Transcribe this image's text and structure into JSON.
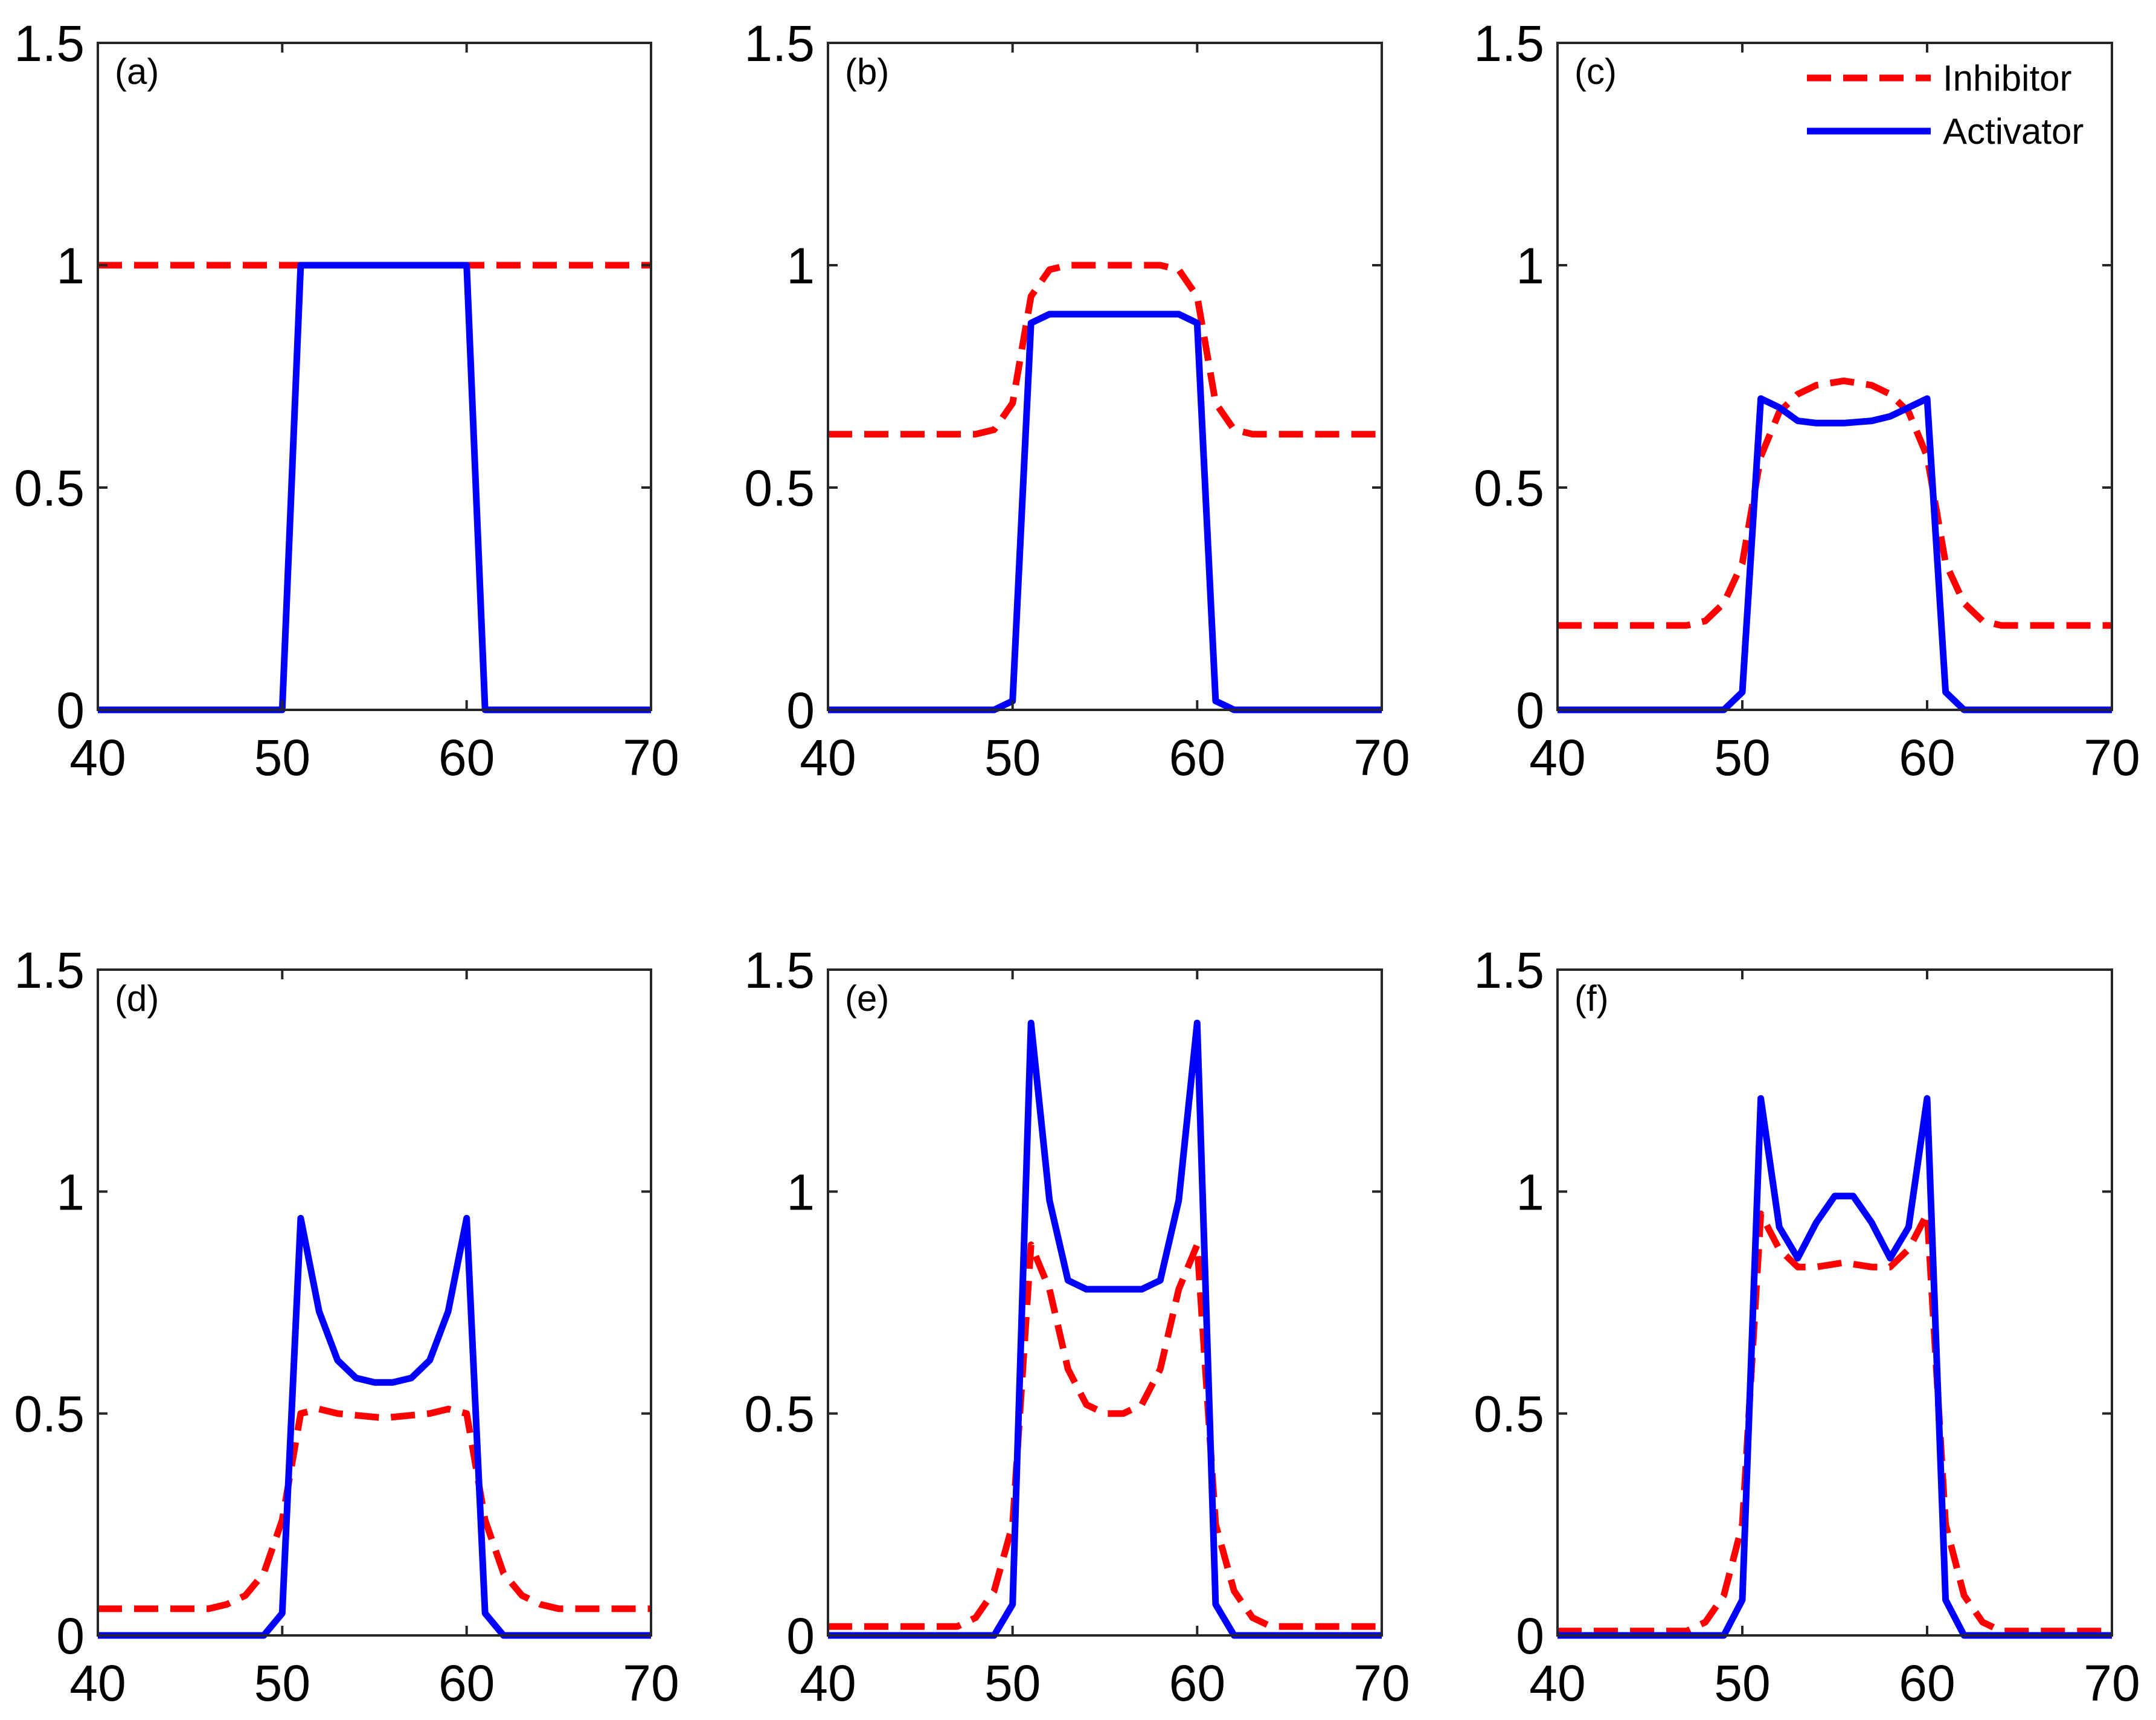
{
  "colors": {
    "inhibitor": "#ff0000",
    "activator": "#0000ff",
    "axes": "#262626"
  },
  "legend": {
    "panel": "(c)",
    "entries": [
      {
        "series": "Inhibitor",
        "label": "Inhibitor"
      },
      {
        "series": "Activator",
        "label": "Activator"
      }
    ]
  },
  "chart_data": [
    {
      "type": "line",
      "panel": "(a)",
      "xlim": [
        40,
        70
      ],
      "ylim": [
        0,
        1.5
      ],
      "xticks": [
        "40",
        "50",
        "60",
        "70"
      ],
      "yticks": [
        "0",
        "0.5",
        "1",
        "1.5"
      ],
      "series": [
        {
          "name": "Inhibitor",
          "style": "dashed",
          "x": [
            40,
            70
          ],
          "y": [
            1,
            1
          ]
        },
        {
          "name": "Activator",
          "style": "solid",
          "x": [
            40,
            50,
            51,
            60,
            61,
            70
          ],
          "y": [
            0,
            0,
            1,
            1,
            0,
            0
          ]
        }
      ]
    },
    {
      "type": "line",
      "panel": "(b)",
      "xlim": [
        40,
        70
      ],
      "ylim": [
        0,
        1.5
      ],
      "xticks": [
        "40",
        "50",
        "60",
        "70"
      ],
      "yticks": [
        "0",
        "0.5",
        "1",
        "1.5"
      ],
      "series": [
        {
          "name": "Inhibitor",
          "style": "dashed",
          "x": [
            40,
            48,
            49,
            50,
            51,
            52,
            53,
            55.5,
            58,
            59,
            60,
            61,
            62,
            63,
            70
          ],
          "y": [
            0.62,
            0.62,
            0.63,
            0.69,
            0.93,
            0.99,
            1.0,
            1.0,
            1.0,
            0.99,
            0.93,
            0.69,
            0.63,
            0.62,
            0.62
          ]
        },
        {
          "name": "Activator",
          "style": "solid",
          "x": [
            40,
            49,
            50,
            51,
            52,
            55.5,
            59,
            60,
            61,
            62,
            70
          ],
          "y": [
            0,
            0,
            0.02,
            0.87,
            0.89,
            0.89,
            0.89,
            0.87,
            0.02,
            0,
            0
          ]
        }
      ]
    },
    {
      "type": "line",
      "panel": "(c)",
      "xlim": [
        40,
        70
      ],
      "ylim": [
        0,
        1.5
      ],
      "xticks": [
        "40",
        "50",
        "60",
        "70"
      ],
      "yticks": [
        "0",
        "0.5",
        "1",
        "1.5"
      ],
      "series": [
        {
          "name": "Inhibitor",
          "style": "dashed",
          "x": [
            40,
            47,
            48,
            49,
            50,
            51,
            52,
            53,
            54,
            55.5,
            57,
            58,
            59,
            60,
            61,
            62,
            63,
            64,
            70
          ],
          "y": [
            0.19,
            0.19,
            0.2,
            0.24,
            0.33,
            0.57,
            0.67,
            0.71,
            0.73,
            0.74,
            0.73,
            0.71,
            0.67,
            0.57,
            0.33,
            0.24,
            0.2,
            0.19,
            0.19
          ]
        },
        {
          "name": "Activator",
          "style": "solid",
          "x": [
            40,
            49,
            50,
            51,
            52,
            53,
            54,
            55.5,
            57,
            58,
            59,
            60,
            61,
            62,
            70
          ],
          "y": [
            0,
            0,
            0.04,
            0.7,
            0.68,
            0.65,
            0.645,
            0.645,
            0.65,
            0.66,
            0.68,
            0.7,
            0.04,
            0,
            0
          ]
        }
      ]
    },
    {
      "type": "line",
      "panel": "(d)",
      "xlim": [
        40,
        70
      ],
      "ylim": [
        0,
        1.5
      ],
      "xticks": [
        "40",
        "50",
        "60",
        "70"
      ],
      "yticks": [
        "0",
        "0.5",
        "1",
        "1.5"
      ],
      "series": [
        {
          "name": "Inhibitor",
          "style": "dashed",
          "x": [
            40,
            46,
            47,
            48,
            49,
            50,
            51,
            52,
            53,
            55.5,
            58,
            59,
            60,
            61,
            62,
            63,
            64,
            65,
            70
          ],
          "y": [
            0.06,
            0.06,
            0.07,
            0.09,
            0.14,
            0.26,
            0.5,
            0.51,
            0.5,
            0.49,
            0.5,
            0.51,
            0.5,
            0.26,
            0.14,
            0.09,
            0.07,
            0.06,
            0.06
          ]
        },
        {
          "name": "Activator",
          "style": "solid",
          "x": [
            40,
            49,
            50,
            51,
            52,
            53,
            54,
            55,
            56,
            57,
            58,
            59,
            60,
            61,
            62,
            70
          ],
          "y": [
            0,
            0,
            0.05,
            0.94,
            0.73,
            0.62,
            0.58,
            0.57,
            0.57,
            0.58,
            0.62,
            0.73,
            0.94,
            0.05,
            0,
            0
          ]
        }
      ]
    },
    {
      "type": "line",
      "panel": "(e)",
      "xlim": [
        40,
        70
      ],
      "ylim": [
        0,
        1.5
      ],
      "xticks": [
        "40",
        "50",
        "60",
        "70"
      ],
      "yticks": [
        "0",
        "0.5",
        "1",
        "1.5"
      ],
      "series": [
        {
          "name": "Inhibitor",
          "style": "dashed",
          "x": [
            40,
            47,
            48,
            49,
            50,
            51,
            52,
            53,
            54,
            55,
            56,
            57,
            58,
            59,
            60,
            61,
            62,
            63,
            64,
            70
          ],
          "y": [
            0.02,
            0.02,
            0.04,
            0.1,
            0.25,
            0.88,
            0.78,
            0.6,
            0.52,
            0.5,
            0.5,
            0.52,
            0.6,
            0.78,
            0.88,
            0.25,
            0.1,
            0.04,
            0.02,
            0.02
          ]
        },
        {
          "name": "Activator",
          "style": "solid",
          "x": [
            40,
            49,
            50,
            51,
            52,
            53,
            54,
            55.5,
            57,
            58,
            59,
            60,
            61,
            62,
            70
          ],
          "y": [
            0,
            0,
            0.07,
            1.38,
            0.98,
            0.8,
            0.78,
            0.78,
            0.78,
            0.8,
            0.98,
            1.38,
            0.07,
            0,
            0
          ]
        }
      ]
    },
    {
      "type": "line",
      "panel": "(f)",
      "xlim": [
        40,
        70
      ],
      "ylim": [
        0,
        1.5
      ],
      "xticks": [
        "40",
        "50",
        "60",
        "70"
      ],
      "yticks": [
        "0",
        "0.5",
        "1",
        "1.5"
      ],
      "series": [
        {
          "name": "Inhibitor",
          "style": "dashed",
          "x": [
            40,
            47,
            48,
            49,
            50,
            51,
            52,
            53,
            54,
            55.5,
            57,
            58,
            59,
            60,
            61,
            62,
            63,
            64,
            70
          ],
          "y": [
            0.01,
            0.01,
            0.03,
            0.09,
            0.25,
            0.95,
            0.87,
            0.83,
            0.83,
            0.84,
            0.83,
            0.83,
            0.87,
            0.95,
            0.25,
            0.09,
            0.03,
            0.01,
            0.01
          ]
        },
        {
          "name": "Activator",
          "style": "solid",
          "x": [
            40,
            49,
            50,
            51,
            52,
            53,
            54,
            55,
            56,
            57,
            58,
            59,
            60,
            61,
            62,
            70
          ],
          "y": [
            0,
            0,
            0.08,
            1.21,
            0.92,
            0.85,
            0.93,
            0.99,
            0.99,
            0.93,
            0.85,
            0.92,
            1.21,
            0.08,
            0,
            0
          ]
        }
      ]
    }
  ]
}
